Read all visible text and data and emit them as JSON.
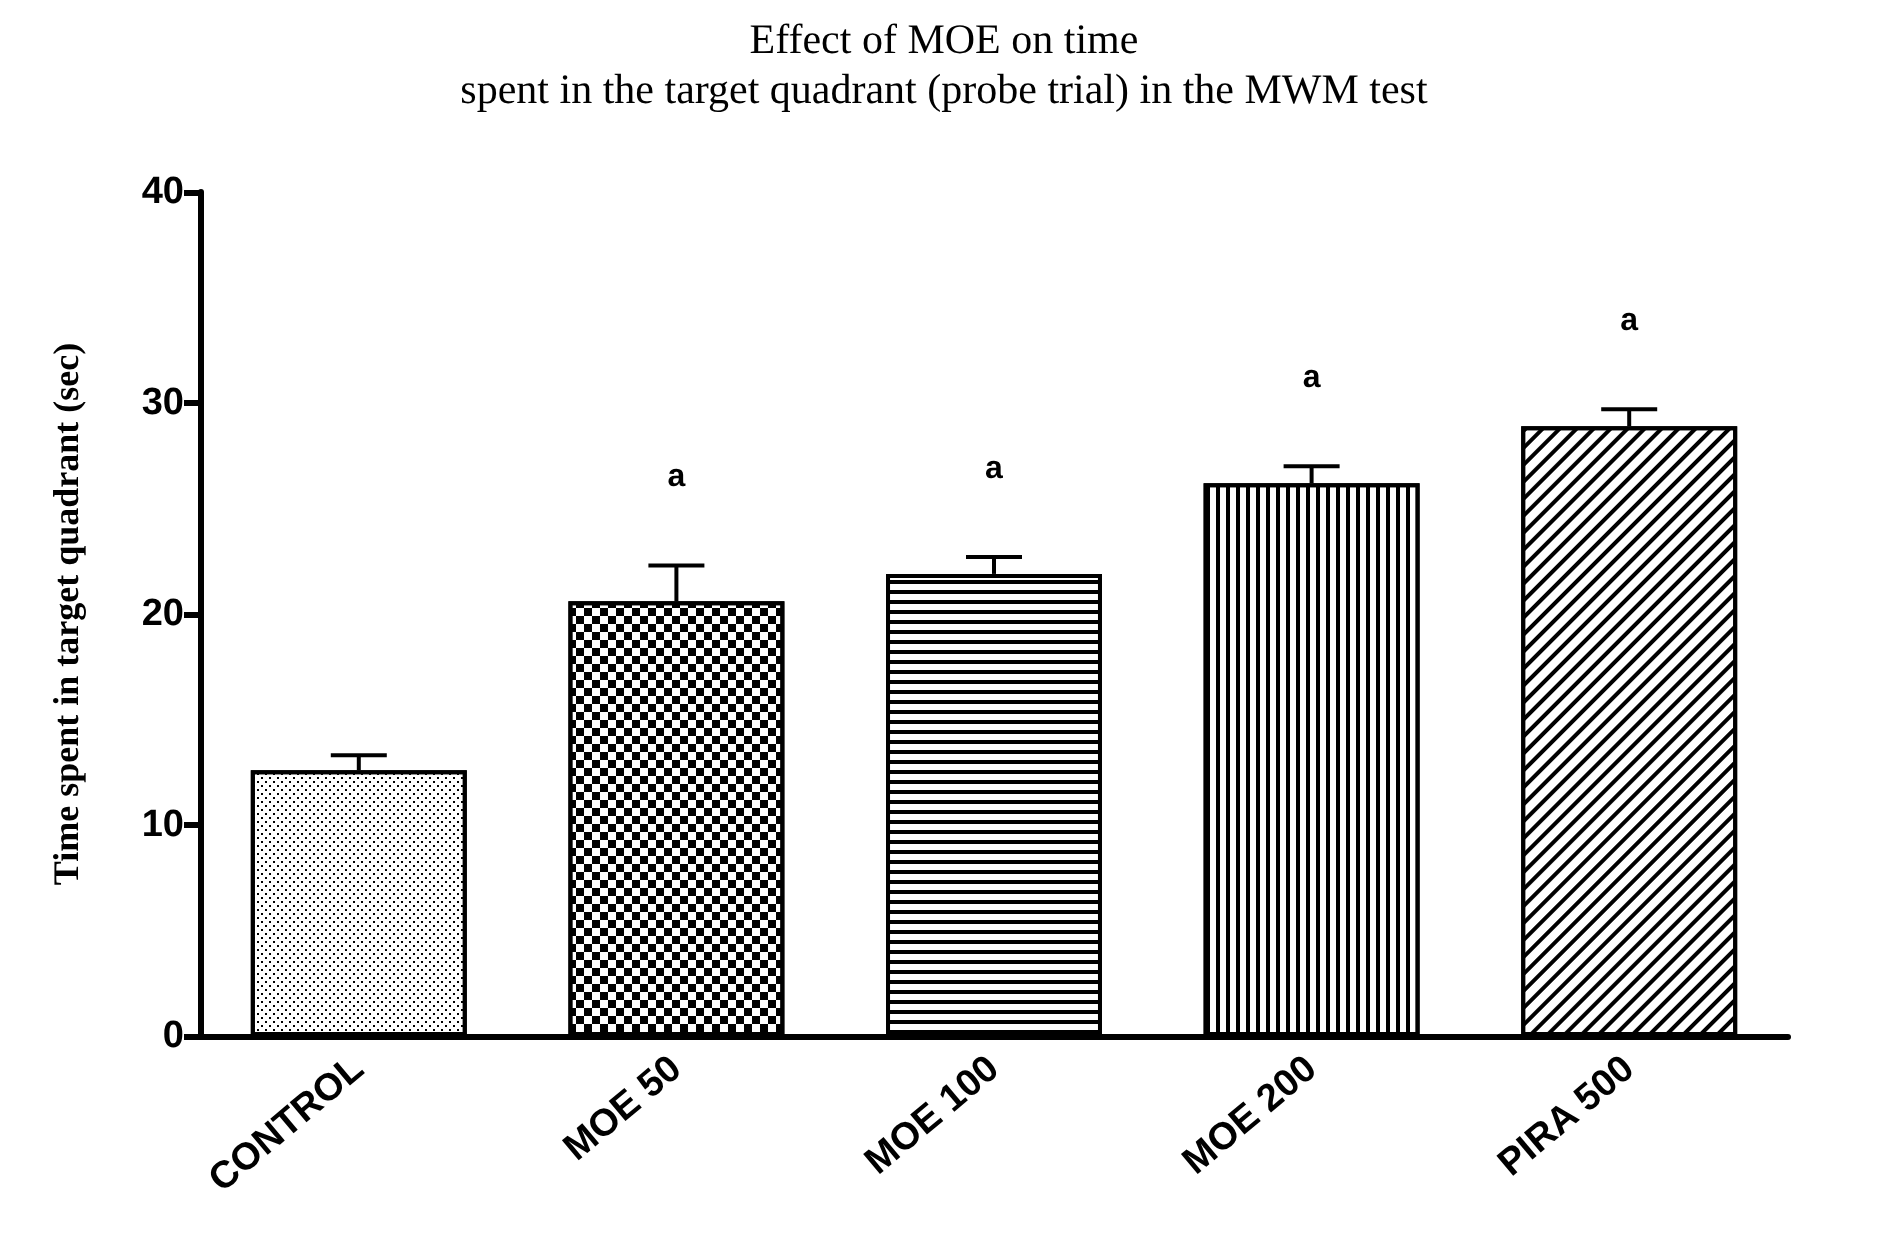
{
  "chart_data": {
    "type": "bar",
    "title": "Effect of MOE on time",
    "subtitle": "spent in the target quadrant (probe trial) in the MWM test",
    "ylabel": "Time spent in target quadrant (sec)",
    "categories": [
      "CONTROL",
      "MOE 50",
      "MOE 100",
      "MOE 200",
      "PIRA 500"
    ],
    "values": [
      12.6,
      20.6,
      21.9,
      26.2,
      28.9
    ],
    "errors": [
      0.7,
      1.7,
      0.8,
      0.8,
      0.8
    ],
    "color": "#ffffff",
    "ylim": [
      0,
      40
    ],
    "yticks": [
      0,
      10,
      20,
      30,
      40
    ],
    "grid": false,
    "annotations": [
      "a",
      "a",
      "a",
      "a"
    ]
  }
}
